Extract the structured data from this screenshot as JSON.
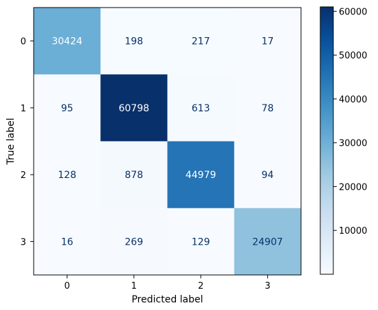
{
  "chart_data": {
    "type": "heatmap",
    "title": "",
    "xlabel": "Predicted label",
    "ylabel": "True label",
    "x_categories": [
      "0",
      "1",
      "2",
      "3"
    ],
    "y_categories": [
      "0",
      "1",
      "2",
      "3"
    ],
    "values": [
      [
        30424,
        198,
        217,
        17
      ],
      [
        95,
        60798,
        613,
        78
      ],
      [
        128,
        878,
        44979,
        94
      ],
      [
        16,
        269,
        129,
        24907
      ]
    ],
    "colormap": "Blues",
    "colorbar": {
      "range": [
        0,
        61000
      ],
      "ticks": [
        "10000",
        "20000",
        "30000",
        "40000",
        "50000",
        "60000"
      ]
    },
    "grid": false,
    "text_colors": {
      "light_cell": "#08306b",
      "dark_cell": "#ffffff"
    }
  }
}
